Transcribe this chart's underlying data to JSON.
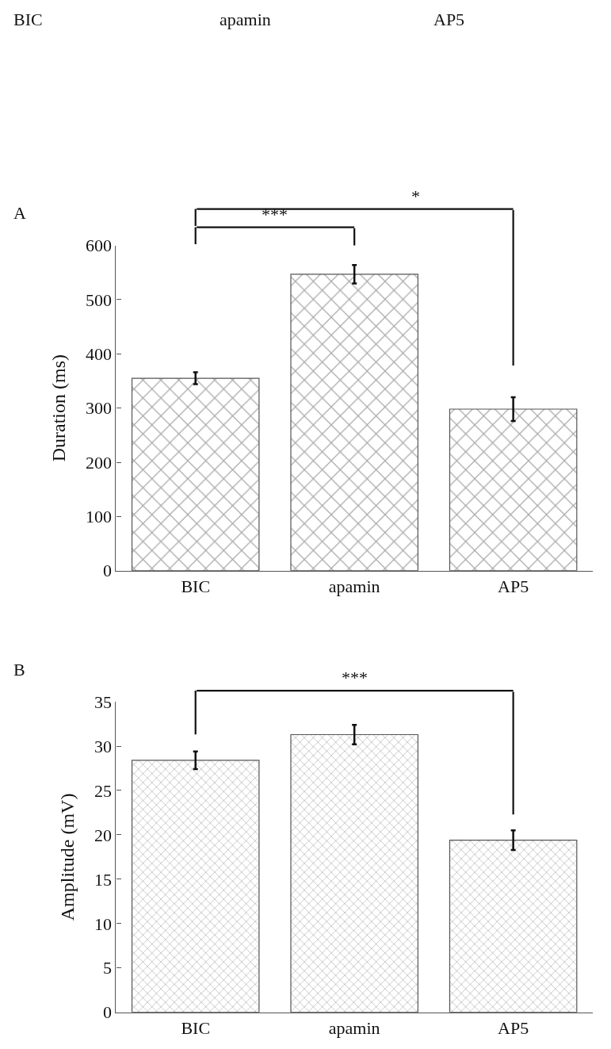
{
  "chart_data": [
    {
      "type": "bar",
      "categories": [
        "BIC",
        "apamin",
        "AP5"
      ],
      "values": [
        355,
        547,
        298
      ],
      "errors": [
        11,
        17,
        22
      ],
      "color": "#555555",
      "ylabel": "Duration (ms)",
      "ylim": [
        0,
        600
      ],
      "yticks": [
        0,
        100,
        200,
        300,
        400,
        500,
        600
      ],
      "annotations": [
        "BIC",
        "apamin",
        "AP5",
        "A",
        "***",
        "*"
      ]
    },
    {
      "type": "bar",
      "categories": [
        "BIC",
        "apamin",
        "AP5"
      ],
      "values": [
        28.4,
        31.3,
        19.4
      ],
      "errors": [
        1.0,
        1.1,
        1.1
      ],
      "color": "#555555",
      "ylabel": "Amplitude (mV)",
      "ylim": [
        0,
        35
      ],
      "yticks": [
        0,
        5,
        10,
        15,
        20,
        25,
        30,
        35
      ],
      "annotations": [
        "B",
        "***"
      ]
    }
  ]
}
